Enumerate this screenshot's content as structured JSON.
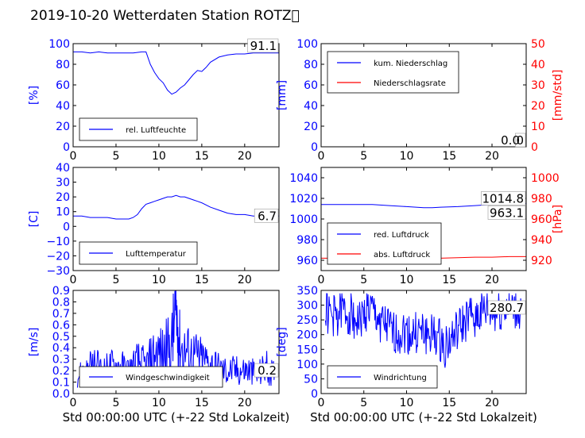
{
  "page": {
    "title": "2019-10-20 Wetterdaten Station ROTZ\u0000"
  },
  "chart_data": [
    {
      "type": "line",
      "panel": "humidity",
      "ylabel": "[%]",
      "xlim": [
        0,
        24
      ],
      "ylim": [
        0,
        100
      ],
      "xticks": [
        "0",
        "5",
        "10",
        "15",
        "20"
      ],
      "yticks": [
        "0",
        "20",
        "40",
        "60",
        "80",
        "100"
      ],
      "last_value": "91.1",
      "legend": "lower-left",
      "series": [
        {
          "name": "rel. Luftfeuchte",
          "color": "#0000ff",
          "x": [
            0,
            1,
            2,
            3,
            4,
            5,
            6,
            7,
            8,
            8.5,
            9,
            9.5,
            10,
            10.5,
            11,
            11.5,
            12,
            12.5,
            13,
            13.5,
            14,
            14.5,
            15,
            15.5,
            16,
            17,
            18,
            19,
            20,
            21,
            22,
            23,
            24
          ],
          "y": [
            92,
            92,
            91,
            92,
            91,
            91,
            91,
            91,
            92,
            92,
            80,
            72,
            66,
            62,
            55,
            51,
            53,
            57,
            60,
            65,
            70,
            74,
            73,
            77,
            82,
            87,
            89,
            90,
            90,
            91,
            91,
            91,
            91
          ]
        }
      ]
    },
    {
      "type": "line",
      "panel": "precipitation",
      "ylabel": "[mm]",
      "ylabel2": "[mm/std]",
      "xlim": [
        0,
        24
      ],
      "ylim": [
        0,
        100
      ],
      "ylim2": [
        0,
        50
      ],
      "xticks": [
        "0",
        "5",
        "10",
        "15",
        "20"
      ],
      "yticks": [
        "0",
        "20",
        "40",
        "60",
        "80",
        "100"
      ],
      "yticks2": [
        "0",
        "10",
        "20",
        "30",
        "40",
        "50"
      ],
      "last_value": "0.0",
      "last_value2": "0",
      "legend": "top-left",
      "series": [
        {
          "name": "kum. Niederschlag",
          "color": "#0000ff",
          "x": [
            0,
            24
          ],
          "y": [
            0,
            0
          ]
        },
        {
          "name": "Niederschlagsrate",
          "color": "#ff0000",
          "x": [
            0,
            24
          ],
          "y": [
            0,
            0
          ]
        }
      ]
    },
    {
      "type": "line",
      "panel": "temperature",
      "ylabel": "[C]",
      "xlim": [
        0,
        24
      ],
      "ylim": [
        -30,
        40
      ],
      "xticks": [
        "0",
        "5",
        "10",
        "15",
        "20"
      ],
      "yticks": [
        "−30",
        "−20",
        "−10",
        "0",
        "10",
        "20",
        "30",
        "40"
      ],
      "last_value": "6.7",
      "legend": "lower-left",
      "series": [
        {
          "name": "Lufttemperatur",
          "color": "#0000ff",
          "x": [
            0,
            1,
            2,
            3,
            4,
            5,
            6,
            6.5,
            7,
            7.5,
            8,
            8.5,
            9,
            9.5,
            10,
            10.5,
            11,
            11.5,
            12,
            12.5,
            13,
            13.5,
            14,
            14.5,
            15,
            16,
            17,
            18,
            19,
            20,
            21,
            22,
            23,
            24
          ],
          "y": [
            7,
            7,
            6,
            6,
            6,
            5,
            5,
            5,
            6,
            8,
            12,
            15,
            16,
            17,
            18,
            19,
            20,
            20,
            21,
            20,
            20,
            19,
            18,
            17,
            16,
            13,
            11,
            9,
            8,
            8,
            7,
            7,
            7,
            7
          ]
        }
      ]
    },
    {
      "type": "line",
      "panel": "pressure",
      "ylabel2": "[hPa]",
      "xlim": [
        0,
        24
      ],
      "ylim": [
        950,
        1050
      ],
      "ylim2": [
        910,
        1010
      ],
      "xticks": [
        "0",
        "5",
        "10",
        "15",
        "20"
      ],
      "yticks": [
        "960",
        "980",
        "1000",
        "1020",
        "1040"
      ],
      "yticks2": [
        "920",
        "940",
        "960",
        "980",
        "1000"
      ],
      "last_value": "1014.8",
      "last_value2": "963.1",
      "legend": "lower-left",
      "series": [
        {
          "name": "red. Luftdruck",
          "color": "#0000ff",
          "x": [
            0,
            2,
            4,
            6,
            8,
            10,
            12,
            13,
            14,
            16,
            18,
            20,
            22,
            24
          ],
          "y": [
            1014,
            1014,
            1014,
            1014,
            1013,
            1012,
            1011,
            1011,
            1011.5,
            1012,
            1013,
            1014,
            1015,
            1015
          ]
        },
        {
          "name": "abs. Luftdruck",
          "color": "#ff0000",
          "x": [
            0,
            2,
            4,
            6,
            8,
            10,
            12,
            13,
            14,
            16,
            18,
            20,
            22,
            24
          ],
          "y": [
            962,
            962,
            962,
            962.5,
            963,
            962.5,
            962,
            962,
            962,
            962.5,
            963,
            963,
            963.5,
            963.5
          ]
        }
      ]
    },
    {
      "type": "line",
      "panel": "wind-speed",
      "ylabel": "[m/s]",
      "xlabel": "Std 00:00:00 UTC (+-22 Std Lokalzeit)",
      "xlim": [
        0,
        24
      ],
      "ylim": [
        0,
        0.9
      ],
      "xticks": [
        "0",
        "5",
        "10",
        "15",
        "20"
      ],
      "yticks": [
        "0.0",
        "0.1",
        "0.2",
        "0.3",
        "0.4",
        "0.5",
        "0.6",
        "0.7",
        "0.8",
        "0.9"
      ],
      "last_value": "0.2",
      "legend": "bottom-center",
      "series": [
        {
          "name": "Windgeschwindigkeit",
          "color": "#0000ff",
          "x": [
            0.5,
            1.5,
            2.5,
            3.5,
            4.5,
            5.5,
            6.5,
            7.5,
            8.5,
            9.5,
            10.5,
            11.5,
            12,
            12.5,
            13.5,
            14.5,
            15.5,
            16.5,
            17.5,
            18.5,
            19.5,
            20.5,
            21.5,
            22.5,
            23.5
          ],
          "y": [
            0.2,
            0.25,
            0.3,
            0.25,
            0.3,
            0.3,
            0.25,
            0.35,
            0.3,
            0.45,
            0.45,
            0.55,
            0.88,
            0.5,
            0.45,
            0.4,
            0.35,
            0.3,
            0.25,
            0.25,
            0.25,
            0.25,
            0.2,
            0.3,
            0.2
          ]
        }
      ]
    },
    {
      "type": "line",
      "panel": "wind-direction",
      "ylabel": "[deg]",
      "xlabel": "Std 00:00:00 UTC (+-22 Std Lokalzeit)",
      "xlim": [
        0,
        24
      ],
      "ylim": [
        0,
        350
      ],
      "xticks": [
        "0",
        "5",
        "10",
        "15",
        "20"
      ],
      "yticks": [
        "0",
        "50",
        "100",
        "150",
        "200",
        "250",
        "300",
        "350"
      ],
      "last_value": "280.7",
      "legend": "bottom-left",
      "series": [
        {
          "name": "Windrichtung",
          "color": "#0000ff",
          "x": [
            0.5,
            1.5,
            2.5,
            3.5,
            4.5,
            5.5,
            6.5,
            7.5,
            8.5,
            9.5,
            10.5,
            11.5,
            12.5,
            13.5,
            14.5,
            15.5,
            16.5,
            17.5,
            18.5,
            19.5,
            20.5,
            21.5,
            22.5,
            23.5
          ],
          "y": [
            280,
            260,
            280,
            270,
            240,
            290,
            260,
            230,
            200,
            210,
            200,
            205,
            200,
            190,
            160,
            190,
            230,
            260,
            270,
            280,
            270,
            290,
            280,
            280
          ]
        }
      ]
    }
  ]
}
